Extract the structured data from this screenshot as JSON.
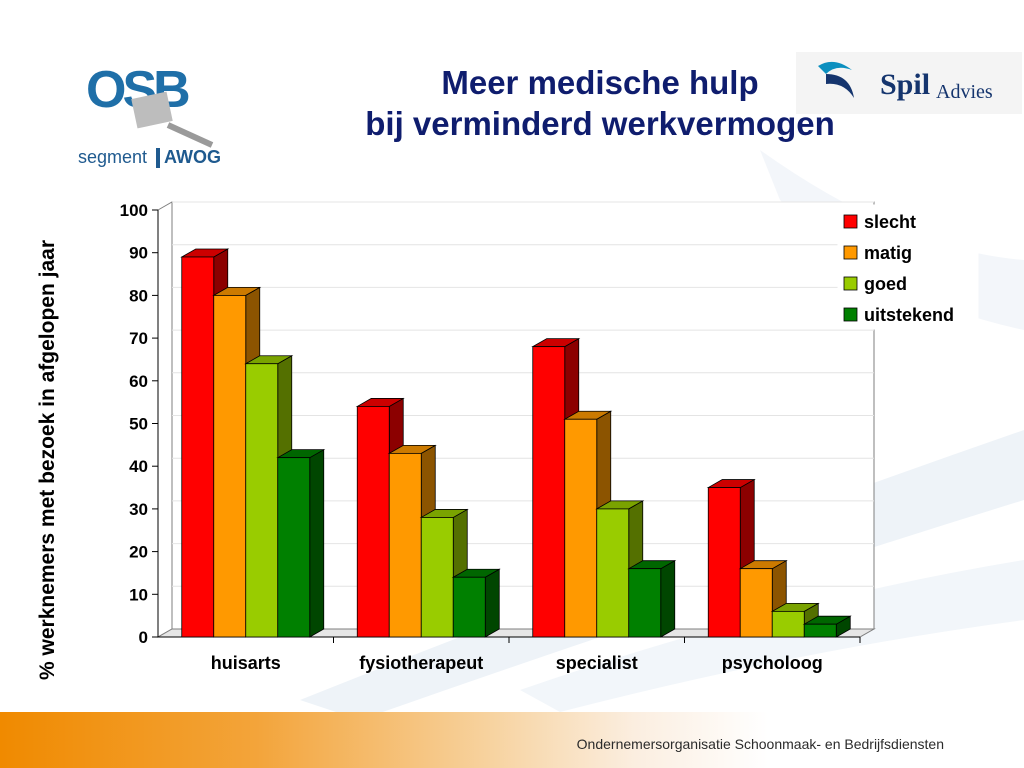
{
  "slide": {
    "title_line1": "Meer medische hulp",
    "title_line2": "bij verminderd werkvermogen",
    "footer": "Ondernemersorganisatie Schoonmaak- en Bedrijfsdiensten"
  },
  "logos": {
    "osb": {
      "letters": "OSB",
      "segment": "segment",
      "awog": "AWOG"
    },
    "spil": {
      "main": "Spil",
      "sub": "Advies"
    }
  },
  "chart_data": {
    "type": "bar",
    "ylabel": "% werknemers met bezoek in afgelopen jaar",
    "ylim": [
      0,
      100
    ],
    "yticks": [
      0,
      10,
      20,
      30,
      40,
      50,
      60,
      70,
      80,
      90,
      100
    ],
    "grid": true,
    "legend_position": "top-right",
    "categories": [
      "huisarts",
      "fysiotherapeut",
      "specialist",
      "psycholoog"
    ],
    "series": [
      {
        "name": "slecht",
        "values": [
          89,
          54,
          68,
          35
        ],
        "color": "#ff0000"
      },
      {
        "name": "matig",
        "values": [
          80,
          43,
          51,
          16
        ],
        "color": "#ff9900"
      },
      {
        "name": "goed",
        "values": [
          64,
          28,
          30,
          6
        ],
        "color": "#99cc00"
      },
      {
        "name": "uitstekend",
        "values": [
          42,
          14,
          16,
          3
        ],
        "color": "#008000"
      }
    ]
  }
}
